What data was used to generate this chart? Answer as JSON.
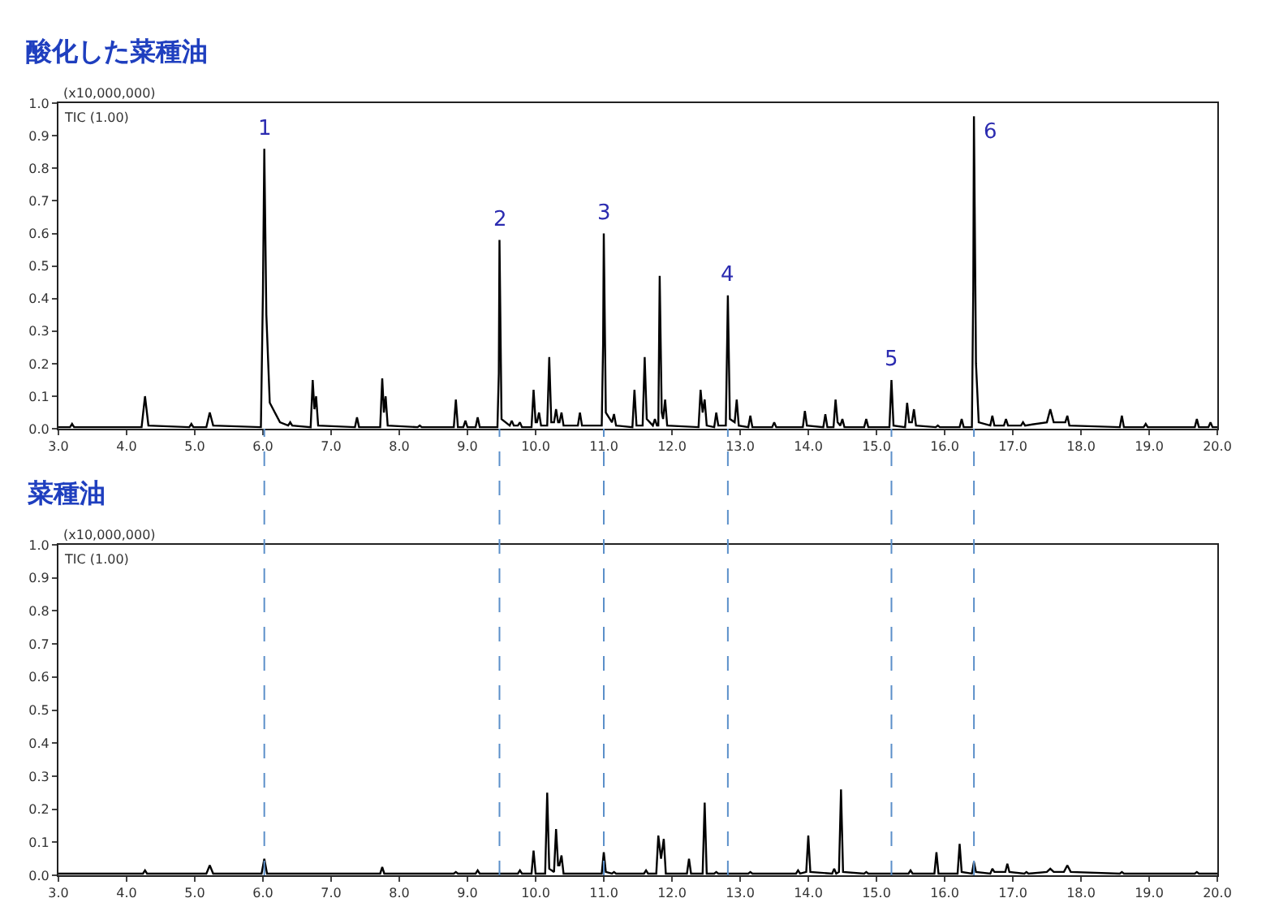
{
  "chart_data": [
    {
      "type": "line",
      "title": "酸化した菜種油",
      "color": "#000000",
      "xlim": [
        3,
        20
      ],
      "ylim": [
        0,
        1
      ],
      "marker": "none",
      "line_style": "solid",
      "xticks": [
        {
          "value": 3,
          "label": "3.0"
        },
        {
          "value": 4,
          "label": "4.0"
        },
        {
          "value": 5,
          "label": "5.0"
        },
        {
          "value": 6,
          "label": "6.0"
        },
        {
          "value": 7,
          "label": "7.0"
        },
        {
          "value": 8,
          "label": "8.0"
        },
        {
          "value": 9,
          "label": "9.0"
        },
        {
          "value": 10,
          "label": "10.0"
        },
        {
          "value": 11,
          "label": "11.0"
        },
        {
          "value": 12,
          "label": "12.0"
        },
        {
          "value": 13,
          "label": "13.0"
        },
        {
          "value": 14,
          "label": "14.0"
        },
        {
          "value": 15,
          "label": "15.0"
        },
        {
          "value": 16,
          "label": "16.0"
        },
        {
          "value": 17,
          "label": "17.0"
        },
        {
          "value": 18,
          "label": "18.0"
        },
        {
          "value": 19,
          "label": "19.0"
        },
        {
          "value": 20,
          "label": "20.0"
        }
      ],
      "yticks": [
        {
          "value": 0,
          "label": "0.0"
        },
        {
          "value": 0.1,
          "label": "0.1"
        },
        {
          "value": 0.2,
          "label": "0.2"
        },
        {
          "value": 0.3,
          "label": "0.3"
        },
        {
          "value": 0.4,
          "label": "0.4"
        },
        {
          "value": 0.5,
          "label": "0.5"
        },
        {
          "value": 0.6,
          "label": "0.6"
        },
        {
          "value": 0.7,
          "label": "0.7"
        },
        {
          "value": 0.8,
          "label": "0.8"
        },
        {
          "value": 0.9,
          "label": "0.9"
        },
        {
          "value": 1,
          "label": "1.0"
        }
      ],
      "annotations": [
        "(x10,000,000)",
        "TIC (1.00)",
        {
          "text": "1",
          "x": 6.02,
          "y": 0.86
        },
        {
          "text": "2",
          "x": 9.47,
          "y": 0.58
        },
        {
          "text": "3",
          "x": 11.0,
          "y": 0.6
        },
        {
          "text": "4",
          "x": 12.82,
          "y": 0.41
        },
        {
          "text": "5",
          "x": 15.22,
          "y": 0.15
        },
        {
          "text": "6",
          "x": 16.43,
          "y": 0.96
        }
      ],
      "x": [
        3.0,
        3.17,
        3.2,
        3.23,
        4.22,
        4.27,
        4.32,
        4.92,
        4.95,
        4.98,
        5.17,
        5.22,
        5.27,
        5.97,
        6.0,
        6.02,
        6.05,
        6.1,
        6.25,
        6.37,
        6.4,
        6.43,
        6.7,
        6.73,
        6.755,
        6.78,
        6.81,
        7.35,
        7.38,
        7.41,
        7.72,
        7.75,
        7.775,
        7.8,
        7.83,
        8.27,
        8.3,
        8.33,
        8.8,
        8.83,
        8.86,
        8.94,
        8.97,
        9.0,
        9.12,
        9.15,
        9.18,
        9.44,
        9.46,
        9.47,
        9.5,
        9.62,
        9.65,
        9.68,
        9.74,
        9.77,
        9.8,
        9.94,
        9.97,
        10.0,
        10.02,
        10.05,
        10.08,
        10.17,
        10.2,
        10.23,
        10.27,
        10.3,
        10.33,
        10.35,
        10.38,
        10.41,
        10.62,
        10.65,
        10.68,
        10.97,
        10.99,
        11.0,
        11.03,
        11.12,
        11.15,
        11.18,
        11.42,
        11.45,
        11.48,
        11.57,
        11.6,
        11.63,
        11.72,
        11.75,
        11.78,
        11.8,
        11.82,
        11.85,
        11.87,
        11.9,
        11.93,
        12.39,
        12.42,
        12.45,
        12.48,
        12.51,
        12.62,
        12.65,
        12.68,
        12.79,
        12.81,
        12.82,
        12.85,
        12.92,
        12.95,
        12.98,
        13.12,
        13.15,
        13.18,
        13.47,
        13.5,
        13.53,
        13.92,
        13.95,
        13.98,
        14.22,
        14.25,
        14.28,
        14.37,
        14.4,
        14.43,
        14.47,
        14.5,
        14.53,
        14.82,
        14.85,
        14.88,
        15.19,
        15.22,
        15.25,
        15.42,
        15.45,
        15.48,
        15.52,
        15.55,
        15.58,
        15.87,
        15.9,
        15.93,
        16.22,
        16.25,
        16.28,
        16.4,
        16.42,
        16.43,
        16.46,
        16.5,
        16.67,
        16.7,
        16.73,
        16.87,
        16.9,
        16.93,
        17.12,
        17.15,
        17.18,
        17.5,
        17.55,
        17.6,
        17.77,
        17.8,
        17.83,
        18.57,
        18.6,
        18.63,
        18.92,
        18.95,
        18.98,
        19.67,
        19.7,
        19.73,
        19.87,
        19.9,
        19.93,
        20.0
      ],
      "values": [
        0.005,
        0.005,
        0.015,
        0.005,
        0.005,
        0.1,
        0.01,
        0.005,
        0.015,
        0.005,
        0.005,
        0.05,
        0.01,
        0.005,
        0.42,
        0.86,
        0.35,
        0.08,
        0.02,
        0.01,
        0.02,
        0.01,
        0.005,
        0.15,
        0.06,
        0.1,
        0.01,
        0.005,
        0.035,
        0.005,
        0.005,
        0.155,
        0.05,
        0.1,
        0.01,
        0.005,
        0.01,
        0.005,
        0.005,
        0.09,
        0.005,
        0.005,
        0.025,
        0.005,
        0.005,
        0.035,
        0.005,
        0.005,
        0.17,
        0.58,
        0.03,
        0.01,
        0.025,
        0.01,
        0.01,
        0.02,
        0.005,
        0.005,
        0.12,
        0.02,
        0.02,
        0.05,
        0.01,
        0.01,
        0.22,
        0.02,
        0.02,
        0.06,
        0.02,
        0.02,
        0.05,
        0.01,
        0.01,
        0.05,
        0.01,
        0.01,
        0.26,
        0.6,
        0.05,
        0.02,
        0.045,
        0.01,
        0.005,
        0.12,
        0.01,
        0.01,
        0.22,
        0.03,
        0.01,
        0.03,
        0.01,
        0.01,
        0.47,
        0.05,
        0.03,
        0.09,
        0.01,
        0.005,
        0.12,
        0.05,
        0.09,
        0.01,
        0.005,
        0.05,
        0.01,
        0.01,
        0.27,
        0.41,
        0.03,
        0.02,
        0.09,
        0.01,
        0.005,
        0.04,
        0.005,
        0.005,
        0.02,
        0.005,
        0.005,
        0.055,
        0.01,
        0.005,
        0.045,
        0.005,
        0.005,
        0.09,
        0.02,
        0.01,
        0.03,
        0.005,
        0.005,
        0.03,
        0.005,
        0.005,
        0.15,
        0.01,
        0.005,
        0.08,
        0.02,
        0.02,
        0.06,
        0.01,
        0.005,
        0.01,
        0.005,
        0.005,
        0.03,
        0.005,
        0.005,
        0.43,
        0.96,
        0.2,
        0.02,
        0.01,
        0.04,
        0.01,
        0.01,
        0.03,
        0.01,
        0.01,
        0.02,
        0.01,
        0.02,
        0.06,
        0.02,
        0.02,
        0.04,
        0.01,
        0.005,
        0.04,
        0.005,
        0.005,
        0.015,
        0.005,
        0.005,
        0.03,
        0.005,
        0.005,
        0.02,
        0.005,
        0.005
      ]
    },
    {
      "type": "line",
      "title": "菜種油",
      "color": "#000000",
      "xlim": [
        3,
        20
      ],
      "ylim": [
        0,
        1
      ],
      "marker": "none",
      "line_style": "solid",
      "xticks": [
        {
          "value": 3,
          "label": "3.0"
        },
        {
          "value": 4,
          "label": "4.0"
        },
        {
          "value": 5,
          "label": "5.0"
        },
        {
          "value": 6,
          "label": "6.0"
        },
        {
          "value": 7,
          "label": "7.0"
        },
        {
          "value": 8,
          "label": "8.0"
        },
        {
          "value": 9,
          "label": "9.0"
        },
        {
          "value": 10,
          "label": "10.0"
        },
        {
          "value": 11,
          "label": "11.0"
        },
        {
          "value": 12,
          "label": "12.0"
        },
        {
          "value": 13,
          "label": "13.0"
        },
        {
          "value": 14,
          "label": "14.0"
        },
        {
          "value": 15,
          "label": "15.0"
        },
        {
          "value": 16,
          "label": "16.0"
        },
        {
          "value": 17,
          "label": "17.0"
        },
        {
          "value": 18,
          "label": "18.0"
        },
        {
          "value": 19,
          "label": "19.0"
        },
        {
          "value": 20,
          "label": "20.0"
        }
      ],
      "yticks": [
        {
          "value": 0,
          "label": "0.0"
        },
        {
          "value": 0.1,
          "label": "0.1"
        },
        {
          "value": 0.2,
          "label": "0.2"
        },
        {
          "value": 0.3,
          "label": "0.3"
        },
        {
          "value": 0.4,
          "label": "0.4"
        },
        {
          "value": 0.5,
          "label": "0.5"
        },
        {
          "value": 0.6,
          "label": "0.6"
        },
        {
          "value": 0.7,
          "label": "0.7"
        },
        {
          "value": 0.8,
          "label": "0.8"
        },
        {
          "value": 0.9,
          "label": "0.9"
        },
        {
          "value": 1,
          "label": "1.0"
        }
      ],
      "annotations": [
        "(x10,000,000)",
        "TIC (1.00)"
      ],
      "ref_lines": [
        {
          "axis": "x",
          "value": 6.02,
          "color": "#5b8fc9",
          "line_style": "dashed"
        },
        {
          "axis": "x",
          "value": 9.47,
          "color": "#5b8fc9",
          "line_style": "dashed"
        },
        {
          "axis": "x",
          "value": 11.0,
          "color": "#5b8fc9",
          "line_style": "dashed"
        },
        {
          "axis": "x",
          "value": 12.82,
          "color": "#5b8fc9",
          "line_style": "dashed"
        },
        {
          "axis": "x",
          "value": 15.22,
          "color": "#5b8fc9",
          "line_style": "dashed"
        },
        {
          "axis": "x",
          "value": 16.43,
          "color": "#5b8fc9",
          "line_style": "dashed"
        }
      ],
      "x": [
        3.0,
        4.24,
        4.27,
        4.3,
        5.17,
        5.22,
        5.27,
        5.98,
        6.02,
        6.06,
        7.72,
        7.75,
        7.78,
        8.8,
        8.83,
        8.86,
        9.12,
        9.15,
        9.18,
        9.74,
        9.77,
        9.8,
        9.94,
        9.97,
        10.0,
        10.14,
        10.17,
        10.2,
        10.27,
        10.3,
        10.33,
        10.35,
        10.38,
        10.41,
        10.97,
        11.0,
        11.03,
        11.12,
        11.15,
        11.18,
        11.59,
        11.62,
        11.65,
        11.77,
        11.8,
        11.84,
        11.88,
        11.91,
        12.22,
        12.25,
        12.28,
        12.45,
        12.48,
        12.51,
        12.62,
        12.65,
        12.68,
        13.12,
        13.15,
        13.18,
        13.82,
        13.85,
        13.88,
        13.97,
        14.0,
        14.03,
        14.35,
        14.38,
        14.41,
        14.45,
        14.48,
        14.51,
        14.82,
        14.85,
        14.88,
        15.47,
        15.5,
        15.53,
        15.85,
        15.88,
        15.91,
        16.19,
        16.22,
        16.25,
        16.4,
        16.43,
        16.46,
        16.67,
        16.7,
        16.73,
        16.89,
        16.92,
        16.95,
        17.17,
        17.2,
        17.23,
        17.5,
        17.55,
        17.6,
        17.75,
        17.8,
        17.85,
        18.57,
        18.6,
        18.63,
        19.67,
        19.7,
        19.73,
        20.0
      ],
      "values": [
        0.005,
        0.005,
        0.015,
        0.005,
        0.005,
        0.03,
        0.005,
        0.005,
        0.05,
        0.005,
        0.005,
        0.025,
        0.005,
        0.005,
        0.01,
        0.005,
        0.005,
        0.015,
        0.005,
        0.005,
        0.015,
        0.005,
        0.005,
        0.075,
        0.005,
        0.005,
        0.25,
        0.02,
        0.01,
        0.14,
        0.03,
        0.03,
        0.06,
        0.005,
        0.005,
        0.07,
        0.01,
        0.005,
        0.01,
        0.005,
        0.005,
        0.015,
        0.005,
        0.005,
        0.12,
        0.05,
        0.11,
        0.005,
        0.005,
        0.05,
        0.005,
        0.005,
        0.22,
        0.005,
        0.005,
        0.01,
        0.005,
        0.005,
        0.01,
        0.005,
        0.005,
        0.015,
        0.005,
        0.01,
        0.12,
        0.01,
        0.005,
        0.02,
        0.005,
        0.01,
        0.26,
        0.01,
        0.005,
        0.01,
        0.005,
        0.005,
        0.015,
        0.005,
        0.005,
        0.07,
        0.005,
        0.005,
        0.095,
        0.01,
        0.005,
        0.04,
        0.01,
        0.005,
        0.02,
        0.01,
        0.01,
        0.035,
        0.01,
        0.005,
        0.01,
        0.005,
        0.01,
        0.02,
        0.01,
        0.01,
        0.03,
        0.01,
        0.005,
        0.01,
        0.005,
        0.005,
        0.01,
        0.005,
        0.005
      ]
    }
  ]
}
